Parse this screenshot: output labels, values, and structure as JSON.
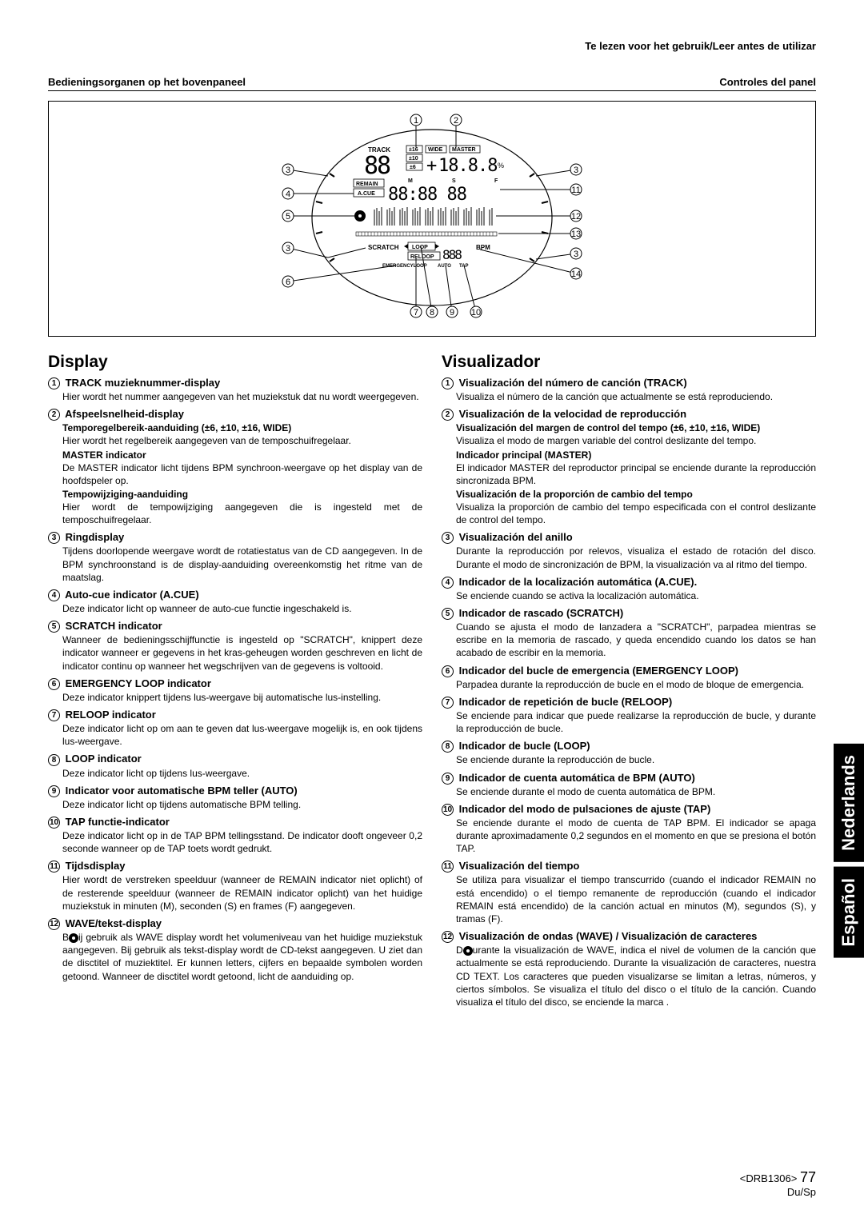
{
  "header": {
    "topRight": "Te lezen voor het gebruik/Leer antes de utilizar",
    "subLeft": "Bedieningsorganen op het bovenpaneel",
    "subRight": "Controles del panel"
  },
  "diagram": {
    "callouts": [
      "1",
      "2",
      "3",
      "3",
      "4",
      "5",
      "3",
      "6",
      "11",
      "12",
      "13",
      "3",
      "14",
      "7",
      "8",
      "9",
      "10"
    ],
    "labels": {
      "track": "TRACK",
      "pm16": "±16",
      "wide": "WIDE",
      "master": "MASTER",
      "pm10": "±10",
      "pm6": "±6",
      "remain": "REMAIN",
      "acue": "A.CUE",
      "m": "M",
      "s": "S",
      "f": "F",
      "scratch": "SCRATCH",
      "loop": "LOOP",
      "bpm": "BPM",
      "reloop": "RELOOP",
      "emergency": "EMERGENCYLOOP",
      "auto": "AUTO",
      "tap": "TAP",
      "percent": "%",
      "plus": "+"
    },
    "digits": {
      "track": "88",
      "tempo": "18.8.8",
      "time": "88:88 88"
    }
  },
  "left": {
    "title": "Display",
    "items": [
      {
        "n": "1",
        "h": "TRACK muzieknummer-display",
        "b": "Hier wordt het nummer aangegeven van het muziekstuk dat nu wordt weergegeven."
      },
      {
        "n": "2",
        "h": "Afspeelsnelheid-display",
        "subs": [
          {
            "sh": "Temporegelbereik-aanduiding (±6, ±10, ±16, WIDE)",
            "sb": "Hier wordt het regelbereik aangegeven van de temposchuifregelaar."
          },
          {
            "sh": "MASTER indicator",
            "sb": "De MASTER indicator licht tijdens BPM synchroon-weergave op het display van de hoofdspeler op."
          },
          {
            "sh": "Tempowijziging-aanduiding",
            "sb": "Hier wordt de tempowijziging aangegeven die is ingesteld met de temposchuifregelaar."
          }
        ]
      },
      {
        "n": "3",
        "h": "Ringdisplay",
        "b": "Tijdens doorlopende weergave wordt de rotatiestatus van de CD aangegeven. In de BPM synchroonstand is de display-aanduiding overeenkomstig het ritme van de maatslag."
      },
      {
        "n": "4",
        "h": "Auto-cue indicator (A.CUE)",
        "b": "Deze indicator licht op wanneer de auto-cue functie ingeschakeld is."
      },
      {
        "n": "5",
        "h": "SCRATCH indicator",
        "b": "Wanneer de bedieningsschijffunctie is ingesteld op \"SCRATCH\", knippert deze indicator wanneer er gegevens in het kras-geheugen worden geschreven en licht de indicator continu op wanneer het wegschrijven van de gegevens is voltooid."
      },
      {
        "n": "6",
        "h": "EMERGENCY LOOP indicator",
        "b": "Deze indicator knippert tijdens lus-weergave bij automatische lus-instelling."
      },
      {
        "n": "7",
        "h": "RELOOP indicator",
        "b": "Deze indicator licht op om aan te geven dat lus-weergave mogelijk is, en ook tijdens lus-weergave."
      },
      {
        "n": "8",
        "h": "LOOP indicator",
        "b": "Deze indicator licht op tijdens lus-weergave."
      },
      {
        "n": "9",
        "h": "Indicator voor automatische BPM teller (AUTO)",
        "b": "Deze indicator licht op tijdens automatische BPM telling."
      },
      {
        "n": "10",
        "h": "TAP functie-indicator",
        "b": "Deze indicator licht op in de TAP BPM tellingsstand. De indicator dooft ongeveer 0,2 seconde wanneer op de TAP toets wordt gedrukt."
      },
      {
        "n": "11",
        "h": "Tijdsdisplay",
        "b": "Hier wordt de verstreken speelduur (wanneer de REMAIN indicator niet oplicht) of de resterende speelduur (wanneer de REMAIN indicator oplicht) van het huidige muziekstuk in minuten (M), seconden (S) en frames (F) aangegeven."
      },
      {
        "n": "12",
        "h": "WAVE/tekst-display",
        "b": "Bij gebruik als WAVE display wordt het volumeniveau van het huidige muziekstuk aangegeven. Bij gebruik als tekst-display wordt de CD-tekst aangegeven. U ziet dan de disctitel of muziektitel. Er kunnen letters, cijfers en bepaalde symbolen worden getoond. Wanneer de disctitel wordt getoond, licht de  aanduiding op.",
        "disc": true
      }
    ]
  },
  "right": {
    "title": "Visualizador",
    "items": [
      {
        "n": "1",
        "h": "Visualización del número de canción (TRACK)",
        "b": "Visualiza el número de la canción que actualmente se está reproduciendo."
      },
      {
        "n": "2",
        "h": "Visualización de la velocidad de reproducción",
        "subs": [
          {
            "sh": "Visualización del margen de control del tempo (±6, ±10, ±16, WIDE)",
            "sb": "Visualiza el modo de margen variable del control deslizante del tempo."
          },
          {
            "sh": "Indicador principal (MASTER)",
            "sb": "El indicador MASTER del reproductor principal se enciende durante la reproducción sincronizada BPM."
          },
          {
            "sh": "Visualización de la proporción de cambio del tempo",
            "sb": "Visualiza la proporción de cambio del tempo especificada con el control deslizante de control del tempo."
          }
        ]
      },
      {
        "n": "3",
        "h": "Visualización del anillo",
        "b": "Durante la reproducción por relevos, visualiza el estado de rotación del disco. Durante el modo de sincronización de BPM, la visualización va al ritmo del tiempo."
      },
      {
        "n": "4",
        "h": "Indicador de la localización automática (A.CUE).",
        "b": "Se enciende cuando se activa la localización automática."
      },
      {
        "n": "5",
        "h": "Indicador de rascado (SCRATCH)",
        "b": "Cuando se ajusta el modo de lanzadera a \"SCRATCH\", parpadea mientras se escribe en la memoria de rascado, y queda encendido cuando los datos se han acabado de escribir en la memoria."
      },
      {
        "n": "6",
        "h": "Indicador del bucle de emergencia (EMERGENCY LOOP)",
        "b": "Parpadea durante la reproducción de bucle en el modo de bloque de emergencia."
      },
      {
        "n": "7",
        "h": "Indicador de repetición de bucle (RELOOP)",
        "b": "Se enciende para indicar que puede realizarse la reproducción de bucle, y durante la reproducción de bucle."
      },
      {
        "n": "8",
        "h": "Indicador de bucle (LOOP)",
        "b": "Se enciende durante la reproducción de bucle."
      },
      {
        "n": "9",
        "h": "Indicador de cuenta automática de BPM (AUTO)",
        "b": "Se enciende durante el modo de cuenta automática de BPM."
      },
      {
        "n": "10",
        "h": "Indicador del modo de pulsaciones de ajuste (TAP)",
        "b": "Se enciende durante el modo de cuenta de TAP BPM. El indicador se apaga durante aproximadamente 0,2 segundos en el momento en que se presiona el botón TAP."
      },
      {
        "n": "11",
        "h": "Visualización del tiempo",
        "b": "Se utiliza para visualizar el tiempo transcurrido (cuando el indicador REMAIN no está encendido) o el tiempo remanente de reproducción (cuando el indicador REMAIN está encendido) de la canción actual en minutos (M), segundos (S), y tramas (F)."
      },
      {
        "n": "12",
        "h": "Visualización de ondas (WAVE) / Visualización de caracteres",
        "b": "Durante la visualización de WAVE, indica el nivel de volumen de la canción que actualmente se está reproduciendo. Durante la visualización de caracteres, nuestra CD TEXT. Los caracteres que pueden visualizarse se limitan a letras, números, y ciertos símbolos. Se visualiza el título del disco o el título de la canción. Cuando visualiza el título del disco, se enciende la marca .",
        "disc": true
      }
    ]
  },
  "tabs": {
    "t1": "Nederlands",
    "t2": "Español"
  },
  "footer": {
    "code": "<DRB1306>",
    "page": "77",
    "lang": "Du/Sp"
  }
}
